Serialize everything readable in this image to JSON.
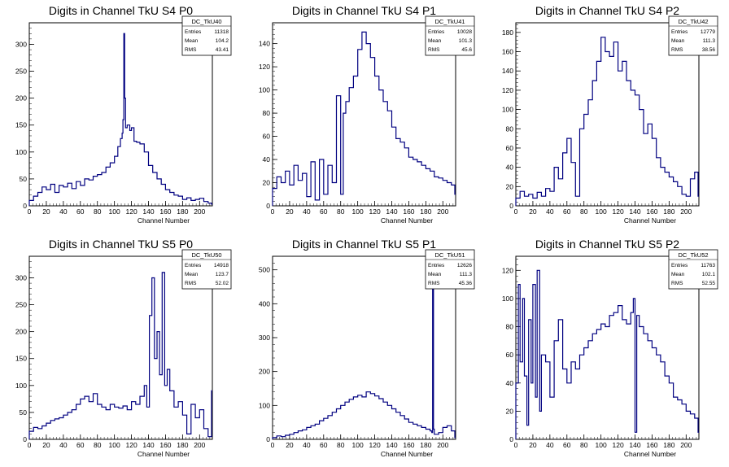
{
  "chart_data": [
    {
      "type": "line",
      "title": "Digits in Channel TkU S4 P0",
      "xlabel": "Channel Number",
      "ylabel": "",
      "xlim": [
        0,
        215
      ],
      "ylim": [
        0,
        340
      ],
      "xticks": [
        0,
        20,
        40,
        60,
        80,
        100,
        120,
        140,
        160,
        180,
        200
      ],
      "yticks": [
        0,
        50,
        100,
        150,
        200,
        250,
        300
      ],
      "stats": {
        "name": "DC_TkU40",
        "entries_label": "Entries",
        "entries": "11318",
        "mean_label": "Mean",
        "mean": "104.2",
        "rms_label": "RMS",
        "rms": "43.41"
      },
      "series": [
        {
          "x": [
            0,
            5,
            10,
            15,
            20,
            25,
            30,
            35,
            40,
            45,
            50,
            55,
            60,
            65,
            70,
            75,
            80,
            85,
            90,
            95,
            100,
            104,
            107,
            109,
            110,
            111,
            112,
            113,
            115,
            118,
            120,
            123,
            126,
            130,
            135,
            140,
            145,
            150,
            155,
            160,
            165,
            170,
            175,
            180,
            185,
            190,
            195,
            200,
            205,
            210,
            214
          ],
          "y": [
            10,
            18,
            25,
            35,
            30,
            40,
            25,
            38,
            35,
            42,
            32,
            45,
            38,
            50,
            48,
            55,
            58,
            62,
            72,
            80,
            92,
            110,
            125,
            135,
            160,
            320,
            200,
            145,
            150,
            140,
            145,
            120,
            118,
            115,
            100,
            75,
            62,
            50,
            40,
            30,
            25,
            20,
            18,
            12,
            15,
            10,
            12,
            14,
            8,
            5,
            3
          ]
        }
      ]
    },
    {
      "type": "line",
      "title": "Digits in Channel TkU S4 P1",
      "xlabel": "Channel Number",
      "ylabel": "",
      "xlim": [
        0,
        215
      ],
      "ylim": [
        0,
        158
      ],
      "xticks": [
        0,
        20,
        40,
        60,
        80,
        100,
        120,
        140,
        160,
        180,
        200
      ],
      "yticks": [
        0,
        20,
        40,
        60,
        80,
        100,
        120,
        140
      ],
      "stats": {
        "name": "DC_TkU41",
        "entries_label": "Entries",
        "entries": "10028",
        "mean_label": "Mean",
        "mean": "101.3",
        "rms_label": "RMS",
        "rms": "45.6"
      },
      "series": [
        {
          "x": [
            0,
            5,
            10,
            15,
            20,
            25,
            30,
            35,
            40,
            45,
            50,
            55,
            60,
            65,
            70,
            75,
            80,
            83,
            86,
            90,
            95,
            100,
            105,
            110,
            115,
            120,
            125,
            130,
            135,
            140,
            145,
            150,
            155,
            160,
            165,
            170,
            175,
            180,
            185,
            190,
            195,
            200,
            205,
            210,
            214
          ],
          "y": [
            15,
            25,
            20,
            30,
            18,
            35,
            22,
            28,
            8,
            38,
            5,
            40,
            10,
            35,
            20,
            95,
            10,
            80,
            90,
            102,
            112,
            135,
            150,
            140,
            128,
            112,
            100,
            90,
            82,
            68,
            58,
            55,
            50,
            42,
            40,
            38,
            35,
            32,
            30,
            25,
            24,
            22,
            20,
            18,
            10
          ]
        }
      ]
    },
    {
      "type": "line",
      "title": "Digits in Channel TkU S4 P2",
      "xlabel": "Channel Number",
      "ylabel": "",
      "xlim": [
        0,
        215
      ],
      "ylim": [
        0,
        190
      ],
      "xticks": [
        0,
        20,
        40,
        60,
        80,
        100,
        120,
        140,
        160,
        180,
        200
      ],
      "yticks": [
        0,
        20,
        40,
        60,
        80,
        100,
        120,
        140,
        160,
        180
      ],
      "stats": {
        "name": "DC_TkU42",
        "entries_label": "Entries",
        "entries": "12779",
        "mean_label": "Mean",
        "mean": "111.3",
        "rms_label": "RMS",
        "rms": "38.56"
      },
      "series": [
        {
          "x": [
            0,
            5,
            10,
            15,
            20,
            25,
            30,
            35,
            40,
            45,
            50,
            55,
            60,
            65,
            70,
            75,
            80,
            85,
            90,
            95,
            100,
            105,
            110,
            115,
            120,
            125,
            130,
            135,
            140,
            145,
            150,
            155,
            160,
            165,
            170,
            175,
            180,
            185,
            190,
            195,
            200,
            205,
            210,
            214
          ],
          "y": [
            8,
            15,
            10,
            12,
            8,
            14,
            10,
            18,
            15,
            40,
            28,
            55,
            70,
            45,
            10,
            80,
            95,
            110,
            130,
            150,
            175,
            160,
            155,
            170,
            140,
            150,
            130,
            120,
            115,
            100,
            75,
            85,
            70,
            50,
            40,
            35,
            30,
            25,
            20,
            12,
            10,
            28,
            35,
            10
          ]
        }
      ]
    },
    {
      "type": "line",
      "title": "Digits in Channel TkU S5 P0",
      "xlabel": "Channel Number",
      "ylabel": "",
      "xlim": [
        0,
        215
      ],
      "ylim": [
        0,
        340
      ],
      "xticks": [
        0,
        20,
        40,
        60,
        80,
        100,
        120,
        140,
        160,
        180,
        200
      ],
      "yticks": [
        0,
        50,
        100,
        150,
        200,
        250,
        300
      ],
      "stats": {
        "name": "DC_TkU50",
        "entries_label": "Entries",
        "entries": "14918",
        "mean_label": "Mean",
        "mean": "123.7",
        "rms_label": "RMS",
        "rms": "52.02"
      },
      "series": [
        {
          "x": [
            0,
            5,
            10,
            15,
            20,
            25,
            30,
            35,
            40,
            45,
            50,
            55,
            60,
            65,
            70,
            75,
            80,
            85,
            90,
            95,
            100,
            105,
            110,
            115,
            120,
            125,
            130,
            135,
            138,
            141,
            144,
            147,
            150,
            153,
            156,
            159,
            162,
            165,
            170,
            175,
            180,
            185,
            190,
            195,
            200,
            205,
            210,
            214
          ],
          "y": [
            15,
            22,
            20,
            25,
            30,
            35,
            38,
            40,
            45,
            50,
            55,
            65,
            75,
            80,
            70,
            85,
            65,
            60,
            55,
            65,
            60,
            58,
            62,
            55,
            70,
            65,
            80,
            100,
            60,
            230,
            300,
            150,
            200,
            120,
            310,
            100,
            130,
            90,
            60,
            70,
            45,
            10,
            65,
            40,
            55,
            20,
            5,
            90
          ]
        }
      ]
    },
    {
      "type": "line",
      "title": "Digits in Channel TkU S5 P1",
      "xlabel": "Channel Number",
      "ylabel": "",
      "xlim": [
        0,
        215
      ],
      "ylim": [
        0,
        540
      ],
      "xticks": [
        0,
        20,
        40,
        60,
        80,
        100,
        120,
        140,
        160,
        180,
        200
      ],
      "yticks": [
        0,
        100,
        200,
        300,
        400,
        500
      ],
      "stats": {
        "name": "DC_TkU51",
        "entries_label": "Entries",
        "entries": "12626",
        "mean_label": "Mean",
        "mean": "111.3",
        "rms_label": "RMS",
        "rms": "45.36"
      },
      "series": [
        {
          "x": [
            0,
            5,
            10,
            15,
            20,
            25,
            30,
            35,
            40,
            45,
            50,
            55,
            60,
            65,
            70,
            75,
            80,
            85,
            90,
            95,
            100,
            105,
            110,
            115,
            120,
            125,
            130,
            135,
            140,
            145,
            150,
            155,
            160,
            165,
            170,
            175,
            180,
            185,
            187,
            188,
            189,
            190,
            195,
            200,
            205,
            210,
            214
          ],
          "y": [
            5,
            10,
            8,
            12,
            15,
            20,
            25,
            28,
            35,
            40,
            45,
            55,
            62,
            70,
            80,
            90,
            100,
            110,
            118,
            125,
            130,
            125,
            140,
            135,
            128,
            120,
            110,
            100,
            90,
            80,
            70,
            60,
            50,
            45,
            40,
            35,
            30,
            25,
            20,
            470,
            30,
            15,
            20,
            35,
            40,
            25,
            5
          ]
        }
      ]
    },
    {
      "type": "line",
      "title": "Digits in Channel TkU S5 P2",
      "xlabel": "Channel Number",
      "ylabel": "",
      "xlim": [
        0,
        215
      ],
      "ylim": [
        0,
        130
      ],
      "xticks": [
        0,
        20,
        40,
        60,
        80,
        100,
        120,
        140,
        160,
        180,
        200
      ],
      "yticks": [
        0,
        20,
        40,
        60,
        80,
        100,
        120
      ],
      "stats": {
        "name": "DC_TkU52",
        "entries_label": "Entries",
        "entries": "11763",
        "mean_label": "Mean",
        "mean": "102.1",
        "rms_label": "RMS",
        "rms": "52.55"
      },
      "series": [
        {
          "x": [
            0,
            3,
            5,
            8,
            10,
            13,
            15,
            18,
            20,
            23,
            25,
            28,
            30,
            35,
            40,
            45,
            50,
            55,
            60,
            65,
            70,
            75,
            80,
            85,
            90,
            95,
            100,
            105,
            110,
            115,
            120,
            125,
            130,
            135,
            138,
            140,
            142,
            145,
            150,
            155,
            160,
            165,
            170,
            175,
            180,
            185,
            190,
            195,
            200,
            205,
            210,
            214
          ],
          "y": [
            40,
            110,
            55,
            100,
            45,
            10,
            85,
            40,
            110,
            30,
            120,
            20,
            60,
            55,
            30,
            70,
            85,
            50,
            40,
            55,
            50,
            60,
            65,
            70,
            75,
            78,
            82,
            80,
            88,
            90,
            95,
            85,
            82,
            90,
            100,
            5,
            88,
            80,
            75,
            70,
            65,
            60,
            55,
            45,
            40,
            30,
            28,
            25,
            20,
            18,
            15,
            5
          ]
        }
      ]
    }
  ]
}
